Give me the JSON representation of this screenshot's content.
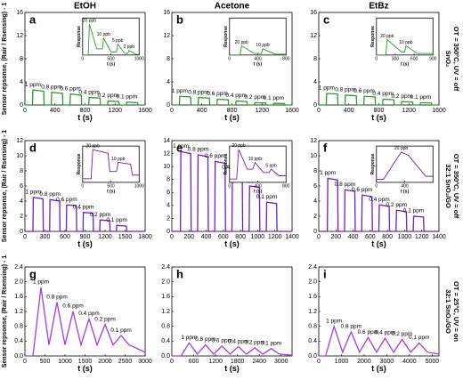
{
  "column_headers": [
    "EtOH",
    "Acetone",
    "EtBz"
  ],
  "row_labels": [
    [
      "SnO₂",
      "OT = 350°C, UV = off"
    ],
    [
      "32:1 SnO₂/GO",
      "OT = 350°C, UV = off"
    ],
    [
      "32:1 SnO₂/GO",
      "OT = 25°C, UV = on"
    ]
  ],
  "y_axis_label": "Sensor repsonse, (Rair / Rsensing) - 1",
  "chart_data": [
    {
      "type": "line",
      "panel_label": "a",
      "x_label": "t (s)",
      "color": "#2e9a2e",
      "x": [
        0,
        100,
        105,
        250,
        255,
        350,
        355,
        500,
        505,
        600,
        605,
        750,
        755,
        850,
        855,
        1000,
        1005,
        1100,
        1105,
        1250,
        1255,
        1350,
        1355,
        1500,
        1505,
        1600
      ],
      "values": [
        0,
        0,
        2.6,
        2.4,
        0,
        0,
        2.2,
        2.0,
        0,
        0,
        1.9,
        1.7,
        0,
        0,
        1.3,
        1.2,
        0,
        0,
        0.7,
        0.6,
        0,
        0,
        0.5,
        0.4,
        0,
        0
      ],
      "xlim": [
        0,
        1600
      ],
      "xticks": [
        0,
        400,
        800,
        1200,
        1600
      ],
      "ylim": [
        0,
        16
      ],
      "yticks": [
        0,
        4,
        8,
        12,
        16
      ],
      "peak_labels": [
        "1 ppm",
        "0.8 ppm",
        "0.6 ppm",
        "0.4 ppm",
        "0.2 ppm",
        "0.1 ppm"
      ],
      "inset": {
        "type": "line",
        "x_label": "t (s)",
        "y_label": "Response",
        "color": "#2e9a2e",
        "x": [
          0,
          100,
          120,
          250,
          350,
          370,
          500,
          600,
          620,
          750,
          800,
          820,
          950,
          1000
        ],
        "values": [
          0,
          0,
          1.0,
          0.2,
          0.2,
          0.55,
          0.1,
          0.1,
          0.35,
          0.05,
          0.05,
          0.15,
          0.02,
          0.02
        ],
        "xlim": [
          0,
          1000
        ],
        "xticks": [
          0,
          500,
          1000
        ],
        "ylim": [
          0,
          1.2
        ],
        "peak_labels": [
          "20 ppb",
          "10 ppb",
          "5 ppb",
          "2 ppb"
        ]
      }
    },
    {
      "type": "line",
      "panel_label": "b",
      "x_label": "t (s)",
      "color": "#2e9a2e",
      "x": [
        0,
        100,
        105,
        250,
        255,
        350,
        355,
        500,
        505,
        600,
        605,
        750,
        755,
        850,
        855,
        1000,
        1005,
        1100,
        1105,
        1250,
        1255,
        1350,
        1355,
        1500,
        1505,
        1600
      ],
      "values": [
        0,
        0,
        1.5,
        1.4,
        0,
        0,
        1.3,
        1.2,
        0,
        0,
        1.0,
        0.9,
        0,
        0,
        0.7,
        0.6,
        0,
        0,
        0.4,
        0.35,
        0,
        0,
        0.3,
        0.25,
        0,
        0
      ],
      "xlim": [
        0,
        1600
      ],
      "xticks": [
        0,
        400,
        800,
        1200,
        1600
      ],
      "ylim": [
        0,
        16
      ],
      "yticks": [
        0,
        4,
        8,
        12,
        16
      ],
      "peak_labels": [
        "1 ppm",
        "0.8 ppm",
        "0.6 ppm",
        "0.4 ppm",
        "0.2 ppm",
        "0.1 ppm"
      ],
      "inset": {
        "type": "line",
        "x_label": "t (s)",
        "y_label": "Response",
        "color": "#2e9a2e",
        "x": [
          0,
          150,
          170,
          350,
          450,
          470,
          650,
          800
        ],
        "values": [
          0,
          0,
          0.3,
          0.05,
          0.05,
          0.2,
          0.03,
          0.03
        ],
        "xlim": [
          0,
          800
        ],
        "xticks": [
          0,
          400,
          800
        ],
        "ylim": [
          0,
          1.2
        ],
        "peak_labels": [
          "20 ppb",
          "10 ppb"
        ]
      }
    },
    {
      "type": "line",
      "panel_label": "c",
      "x_label": "t (s)",
      "color": "#2e9a2e",
      "x": [
        0,
        100,
        105,
        250,
        255,
        350,
        355,
        500,
        505,
        600,
        605,
        750,
        755,
        850,
        855,
        1000,
        1005,
        1100,
        1105,
        1250,
        1255,
        1350,
        1355,
        1500,
        1505,
        1600
      ],
      "values": [
        0,
        0,
        2.0,
        1.9,
        0,
        0,
        1.7,
        1.6,
        0,
        0,
        1.5,
        1.4,
        0,
        0,
        1.0,
        0.9,
        0,
        0,
        0.6,
        0.5,
        0,
        0,
        0.4,
        0.35,
        0,
        0
      ],
      "xlim": [
        0,
        1600
      ],
      "xticks": [
        0,
        400,
        800,
        1200,
        1600
      ],
      "ylim": [
        0,
        16
      ],
      "yticks": [
        0,
        4,
        8,
        12,
        16
      ],
      "peak_labels": [
        "1 ppm",
        "0.8 ppm",
        "0.6 ppm",
        "0.4 ppm",
        "0.2 ppm",
        "0.1 ppm"
      ],
      "inset": {
        "type": "line",
        "x_label": "t (s)",
        "y_label": "Response",
        "color": "#2e9a2e",
        "x": [
          0,
          150,
          170,
          400,
          450,
          470,
          650,
          900
        ],
        "values": [
          0,
          0,
          0.5,
          0.1,
          0.1,
          0.3,
          0.05,
          0.05
        ],
        "xlim": [
          0,
          900
        ],
        "xticks": [
          0,
          300,
          600,
          900
        ],
        "ylim": [
          0,
          1.2
        ],
        "peak_labels": [
          "20 ppb",
          "10 ppb"
        ]
      }
    },
    {
      "type": "line",
      "panel_label": "d",
      "x_label": "t (s)",
      "color": "#6a1fd0",
      "x": [
        0,
        120,
        125,
        270,
        275,
        370,
        375,
        520,
        525,
        620,
        625,
        770,
        775,
        870,
        875,
        1020,
        1025,
        1120,
        1125,
        1270,
        1275,
        1370,
        1375,
        1520,
        1525,
        1800
      ],
      "values": [
        0,
        0,
        4.5,
        4.3,
        0,
        0,
        4.2,
        4.0,
        0,
        0,
        3.5,
        3.4,
        0,
        0,
        2.5,
        2.4,
        0,
        0,
        1.5,
        1.4,
        0,
        0,
        0.8,
        0.7,
        0,
        0
      ],
      "xlim": [
        0,
        1800
      ],
      "xticks": [
        0,
        300,
        600,
        900,
        1200,
        1500,
        1800
      ],
      "ylim": [
        0,
        12
      ],
      "yticks": [
        0,
        2,
        4,
        6,
        8,
        10,
        12
      ],
      "peak_labels": [
        "1 ppm",
        "0.8 ppm",
        "0.6 ppm",
        "0.4 ppm",
        "0.2 ppm",
        "0.1 ppm"
      ],
      "inset": {
        "type": "line",
        "x_label": "t (s)",
        "y_label": "Response",
        "color": "#6a1fd0",
        "x": [
          0,
          150,
          180,
          450,
          480,
          600,
          630,
          850,
          880,
          1000
        ],
        "values": [
          0.1,
          0.1,
          0.9,
          0.8,
          0.3,
          0.3,
          0.55,
          0.5,
          0.2,
          0.2
        ],
        "xlim": [
          0,
          1000
        ],
        "xticks": [
          0,
          500,
          1000
        ],
        "ylim": [
          0,
          1
        ],
        "peak_labels": [
          "20 ppb",
          "10 ppb"
        ]
      }
    },
    {
      "type": "line",
      "panel_label": "e",
      "x_label": "t (s)",
      "color": "#6a1fd0",
      "x": [
        0,
        100,
        105,
        220,
        225,
        300,
        305,
        420,
        425,
        500,
        505,
        620,
        625,
        700,
        705,
        820,
        825,
        900,
        905,
        1020,
        1025,
        1100,
        1105,
        1220,
        1225,
        1400
      ],
      "values": [
        0,
        0,
        12.3,
        12.0,
        0,
        0,
        11.8,
        11.5,
        0,
        0,
        10.8,
        10.5,
        0,
        0,
        9.0,
        8.8,
        0,
        0,
        7.0,
        6.8,
        0,
        0,
        4.5,
        4.3,
        0,
        0
      ],
      "xlim": [
        0,
        1400
      ],
      "xticks": [
        0,
        200,
        400,
        600,
        800,
        1000,
        1200,
        1400
      ],
      "ylim": [
        0,
        14
      ],
      "yticks": [
        0,
        2,
        4,
        6,
        8,
        10,
        12,
        14
      ],
      "peak_labels": [
        "1 ppm",
        "0.8 ppm",
        "0.6 ppm",
        "0.4 ppm",
        "0.2 ppm",
        "0.1 ppm"
      ],
      "inset": {
        "type": "line",
        "x_label": "t (s)",
        "y_label": "Response",
        "color": "#6a1fd0",
        "x": [
          0,
          100,
          130,
          250,
          330,
          360,
          480,
          560,
          590,
          700,
          800
        ],
        "values": [
          0.1,
          0.1,
          1.0,
          0.4,
          0.4,
          0.6,
          0.3,
          0.3,
          0.4,
          0.2,
          0.2
        ],
        "xlim": [
          0,
          800
        ],
        "xticks": [
          0,
          400,
          800
        ],
        "ylim": [
          0,
          1.1
        ],
        "peak_labels": [
          "20 ppb",
          "10 ppb",
          "5 ppb"
        ]
      }
    },
    {
      "type": "line",
      "panel_label": "f",
      "x_label": "t (s)",
      "color": "#6a1fd0",
      "x": [
        0,
        100,
        105,
        220,
        225,
        300,
        305,
        420,
        425,
        500,
        505,
        620,
        625,
        700,
        705,
        820,
        825,
        900,
        905,
        1020,
        1025,
        1100,
        1105,
        1220,
        1225,
        1400
      ],
      "values": [
        0,
        0,
        7.0,
        6.8,
        0,
        0,
        5.5,
        5.3,
        0,
        0,
        4.8,
        4.6,
        0,
        0,
        3.5,
        3.3,
        0,
        0,
        2.8,
        2.6,
        0,
        0,
        2.0,
        1.9,
        0,
        0
      ],
      "xlim": [
        0,
        1400
      ],
      "xticks": [
        0,
        200,
        400,
        600,
        800,
        1000,
        1200,
        1400
      ],
      "ylim": [
        0,
        12
      ],
      "yticks": [
        0,
        2,
        4,
        6,
        8,
        10,
        12
      ],
      "peak_labels": [
        "1 ppm",
        "0.8 ppm",
        "0.6 ppm",
        "0.4 ppm",
        "0.2 ppm",
        "0.1 ppm"
      ],
      "inset": {
        "type": "line",
        "x_label": "t (s)",
        "y_label": "Response",
        "color": "#6a1fd0",
        "x": [
          0,
          100,
          350,
          450,
          700,
          800
        ],
        "values": [
          0.1,
          0.1,
          1.0,
          0.9,
          0.2,
          0.2
        ],
        "xlim": [
          0,
          800
        ],
        "xticks": [
          0,
          400
        ],
        "ylim": [
          0,
          1.2
        ],
        "peak_labels": [
          "20 ppb"
        ]
      }
    },
    {
      "type": "line",
      "panel_label": "g",
      "x_label": "t (s)",
      "color": "#a23ce8",
      "x": [
        0,
        200,
        400,
        600,
        800,
        1000,
        1200,
        1400,
        1600,
        1800,
        2000,
        2200,
        2400,
        2600,
        3000
      ],
      "values": [
        0,
        0,
        1.85,
        0.3,
        1.45,
        0.3,
        1.2,
        0.3,
        1.0,
        0.3,
        0.85,
        0.3,
        0.55,
        0.3,
        0.1
      ],
      "xlim": [
        0,
        3000
      ],
      "xticks": [
        0,
        500,
        1000,
        1500,
        2000,
        2500,
        3000
      ],
      "ylim": [
        0,
        2.4
      ],
      "yticks": [
        {
          "value": 0,
          "label": "0.0"
        },
        0.4,
        0.8,
        1.2,
        1.6,
        {
          "value": 2,
          "label": "2.0"
        },
        2.4
      ],
      "peak_labels": [
        "1 ppm",
        "0.8 ppm",
        "0.6 ppm",
        "0.4 ppm",
        "0.2 ppm",
        "0.1 ppm"
      ]
    },
    {
      "type": "line",
      "panel_label": "h",
      "x_label": "t (s)",
      "color": "#a23ce8",
      "x": [
        0,
        250,
        475,
        700,
        925,
        1150,
        1375,
        1600,
        1825,
        2050,
        2275,
        2500,
        2725,
        2950,
        3300
      ],
      "values": [
        0,
        0,
        0.35,
        0.05,
        0.3,
        0.05,
        0.27,
        0.05,
        0.25,
        0.05,
        0.22,
        0.05,
        0.2,
        0.05,
        0.02
      ],
      "xlim": [
        0,
        3300
      ],
      "xticks": [
        0,
        600,
        1200,
        1800,
        2400,
        3000
      ],
      "ylim": [
        0,
        2.4
      ],
      "yticks": [
        {
          "value": 0,
          "label": "0.0"
        },
        0.4,
        0.8,
        1.2,
        1.6,
        {
          "value": 2,
          "label": "2.0"
        },
        2.4
      ],
      "peak_labels": [
        "1 ppm",
        "0.8 ppm",
        "0.6 ppm",
        "0.4 ppm",
        "0.2 ppm",
        "0.1 ppm"
      ]
    },
    {
      "type": "line",
      "panel_label": "i",
      "x_label": "t (s)",
      "color": "#a23ce8",
      "x": [
        0,
        300,
        675,
        1050,
        1425,
        1800,
        2175,
        2550,
        2925,
        3300,
        3675,
        4050,
        4425,
        4800,
        5300
      ],
      "values": [
        0,
        0,
        0.8,
        0.1,
        0.65,
        0.1,
        0.5,
        0.1,
        0.48,
        0.1,
        0.45,
        0.1,
        0.35,
        0.1,
        0.05
      ],
      "xlim": [
        0,
        5300
      ],
      "xticks": [
        0,
        1000,
        2000,
        3000,
        4000,
        5000
      ],
      "ylim": [
        0,
        2.4
      ],
      "yticks": [
        {
          "value": 0,
          "label": "0.0"
        },
        0.4,
        0.8,
        1.2,
        1.6,
        {
          "value": 2,
          "label": "2.0"
        },
        2.4
      ],
      "peak_labels": [
        "1 ppm",
        "0.8 ppm",
        "0.6 ppm",
        "0.4 ppm",
        "0.2 ppm",
        "0.1 ppm"
      ]
    }
  ]
}
